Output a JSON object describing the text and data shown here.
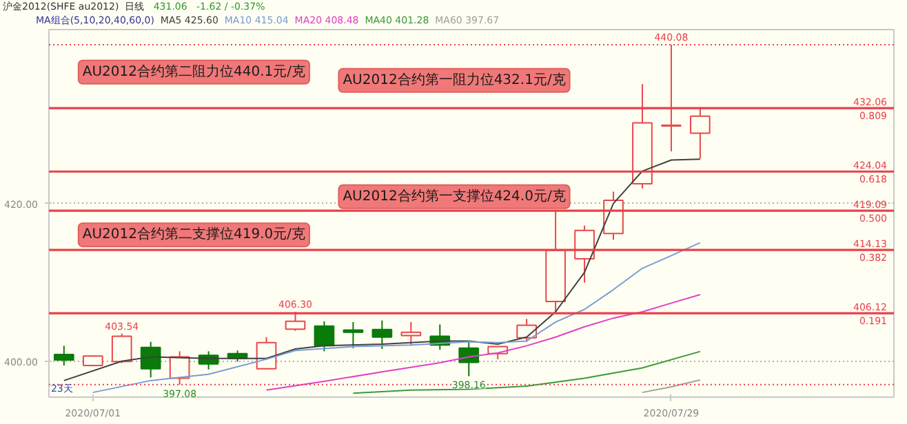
{
  "chart_data": {
    "type": "candlestick",
    "title": "沪金2012(SHFE au2012)",
    "subtitle": "日线",
    "legend_title": "MA组合(5,10,20,40,60,0)",
    "categories": [
      null,
      "2020/07/01",
      null,
      null,
      null,
      null,
      null,
      null,
      null,
      null,
      null,
      null,
      null,
      null,
      null,
      null,
      null,
      null,
      null,
      null,
      null,
      "2020/07/29",
      null
    ],
    "ohlc": [
      [
        400.9,
        402.0,
        399.5,
        400.2
      ],
      [
        399.5,
        400.8,
        399.4,
        400.7
      ],
      [
        400.0,
        403.54,
        399.8,
        403.2
      ],
      [
        401.8,
        402.5,
        398.0,
        399.1
      ],
      [
        397.9,
        401.3,
        397.08,
        400.6
      ],
      [
        400.8,
        401.3,
        399.0,
        399.7
      ],
      [
        401.0,
        401.4,
        400.0,
        400.4
      ],
      [
        399.1,
        403.1,
        399.0,
        402.4
      ],
      [
        404.1,
        406.3,
        403.9,
        405.1
      ],
      [
        404.5,
        405.1,
        401.3,
        402.0
      ],
      [
        404.0,
        405.0,
        401.7,
        403.7
      ],
      [
        404.05,
        405.2,
        401.6,
        403.1
      ],
      [
        403.3,
        405.0,
        402.0,
        403.7
      ],
      [
        403.2,
        404.7,
        401.5,
        402.1
      ],
      [
        401.7,
        402.5,
        398.16,
        399.9
      ],
      [
        401.0,
        401.9,
        400.3,
        401.9
      ],
      [
        403.0,
        405.4,
        402.5,
        404.6
      ],
      [
        407.6,
        419.2,
        406.3,
        414.1
      ],
      [
        413.0,
        417.2,
        410.0,
        416.6
      ],
      [
        416.2,
        421.5,
        415.4,
        420.4
      ],
      [
        422.5,
        435.1,
        421.9,
        430.2
      ],
      [
        429.8,
        440.08,
        426.6,
        429.9
      ],
      [
        428.9,
        432.2,
        425.7,
        431.06
      ]
    ],
    "colors": [
      "#0a7a0a",
      "#e8474a",
      "#e8474a",
      "#0a7a0a",
      "#e8474a",
      "#0a7a0a",
      "#0a7a0a",
      "#e8474a",
      "#e8474a",
      "#0a7a0a",
      "#0a7a0a",
      "#0a7a0a",
      "#e8474a",
      "#0a7a0a",
      "#0a7a0a",
      "#e8474a",
      "#e8474a",
      "#e8474a",
      "#e8474a",
      "#e8474a",
      "#e8474a",
      "#e8474a",
      "#e8474a"
    ],
    "series": [
      {
        "name": "MA5 425.60",
        "type": "line",
        "color": "#404040",
        "values": [
          397.6,
          null,
          400.05,
          400.6,
          null,
          400.4,
          null,
          400.4,
          401.6,
          402.0,
          null,
          402.2,
          null,
          402.6,
          402.6,
          402.2,
          403.1,
          406.3,
          411.3,
          420.0,
          424.1,
          425.5,
          425.6
        ]
      },
      {
        "name": "MA10 415.04",
        "type": "line",
        "color": "#7a9cd6",
        "values": [
          null,
          396.1,
          null,
          397.6,
          null,
          398.4,
          null,
          400.3,
          401.4,
          null,
          401.9,
          null,
          402.1,
          402.3,
          402.5,
          402.4,
          402.6,
          405.0,
          406.6,
          409.1,
          411.8,
          413.4,
          415.04
        ]
      },
      {
        "name": "MA20 408.48",
        "type": "line",
        "color": "#e040c8",
        "values": [
          null,
          null,
          null,
          null,
          null,
          null,
          null,
          396.4,
          null,
          397.5,
          null,
          398.7,
          null,
          399.85,
          400.6,
          401.1,
          402.0,
          403.1,
          404.4,
          405.5,
          406.3,
          407.4,
          408.48
        ]
      },
      {
        "name": "MA40 401.28",
        "type": "line",
        "color": "#3a9a3a",
        "values": [
          null,
          null,
          null,
          null,
          null,
          null,
          null,
          null,
          null,
          null,
          396.0,
          null,
          396.4,
          null,
          396.5,
          null,
          396.9,
          null,
          397.9,
          null,
          399.2,
          null,
          401.28
        ]
      },
      {
        "name": "MA60 397.67",
        "type": "line",
        "color": "#a0a0a0",
        "values": [
          null,
          null,
          null,
          null,
          null,
          null,
          null,
          null,
          null,
          null,
          null,
          null,
          null,
          null,
          null,
          null,
          null,
          null,
          null,
          null,
          396.1,
          396.8,
          397.67
        ]
      }
    ],
    "ylim": [
      395.5,
      442.0
    ],
    "yticks": [
      {
        "value": 400,
        "label": "400.00"
      },
      {
        "value": 420,
        "label": "420.00"
      }
    ],
    "grid": "y",
    "legend": "top",
    "ref_lines": [
      {
        "axis": "y",
        "value": 432.06,
        "label": "432.06\n0.809",
        "color": "#e8404a",
        "line_style": "solid"
      },
      {
        "axis": "y",
        "value": 424.04,
        "label": "424.04\n0.618",
        "color": "#e8404a",
        "line_style": "solid"
      },
      {
        "axis": "y",
        "value": 419.09,
        "label": "419.09\n0.500",
        "color": "#e8404a",
        "line_style": "solid"
      },
      {
        "axis": "y",
        "value": 414.13,
        "label": "414.13\n0.382",
        "color": "#e8404a",
        "line_style": "solid"
      },
      {
        "axis": "y",
        "value": 406.12,
        "label": "406.12\n0.191",
        "color": "#e8404a",
        "line_style": "solid"
      },
      {
        "axis": "y",
        "value": 440.08,
        "label": null,
        "color": "#e8404a",
        "line_style": "dotted"
      },
      {
        "axis": "y",
        "value": 397.08,
        "label": null,
        "color": "#e8404a",
        "line_style": "dotted"
      }
    ],
    "annotations": [
      "431.06",
      "-1.62 / -0.37%",
      "23天",
      {
        "text": "AU2012合约第二阻力位440.1元/克",
        "y": 440.1
      },
      {
        "text": "AU2012合约第一阻力位432.1元/克",
        "y": 432.1
      },
      {
        "text": "AU2012合约第一支撑位424.0元/克",
        "y": 424.0
      },
      {
        "text": "AU2012合约第二支撑位419.0元/克",
        "y": 419.0
      },
      {
        "text": "403.54",
        "y": 403.54
      },
      {
        "text": "406.30",
        "y": 406.3
      },
      {
        "text": "440.08",
        "y": 440.08
      },
      {
        "text": "397.08",
        "y": 397.08
      },
      {
        "text": "398.16",
        "y": 398.16
      }
    ]
  }
}
